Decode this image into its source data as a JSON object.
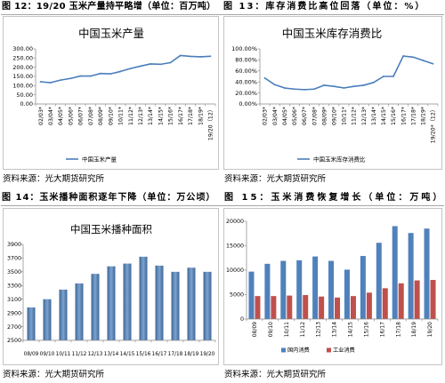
{
  "figures": [
    {
      "caption": "图 12：19/20 玉米产量持平略增（单位：百万吨）",
      "source": "资料来源：光大期货研究所"
    },
    {
      "caption": "图 13：库存消费比高位回落（单位：%）",
      "source": "资料来源：光大期货研究所"
    },
    {
      "caption": "图 14：玉米播种面积逐年下降（单位：万公顷）",
      "source": "资料来源：光大期货研究所"
    },
    {
      "caption": "图 15：玉米消费恢复增长（单位：万吨）",
      "source": "资料来源：光大期货研究所"
    }
  ],
  "chart_data": [
    {
      "type": "line",
      "title": "中国玉米产量",
      "categories": [
        "02/03*",
        "03/04*",
        "04/05*",
        "05/06*",
        "06/07*",
        "07/08*",
        "08/09*",
        "09/10*",
        "10/11*",
        "11/12*",
        "12/13*",
        "13/14*",
        "14/15*",
        "15/16*",
        "16/17*",
        "17/18*",
        "18/19*",
        "19/20（12）"
      ],
      "series": [
        {
          "name": "中国玉米产量",
          "color": "#4a7ebb",
          "values": [
            121,
            116,
            130,
            139,
            152,
            152,
            166,
            164,
            177,
            193,
            206,
            218,
            216,
            225,
            264,
            259,
            257,
            260
          ]
        }
      ],
      "ylim": [
        0,
        300
      ],
      "yticks": [
        0,
        50,
        100,
        150,
        200,
        250,
        300
      ],
      "ytick_labels": [
        "0.00",
        "50.00",
        "100.00",
        "150.00",
        "200.00",
        "250.00",
        "300.00"
      ],
      "grid": false,
      "legend": "bottom"
    },
    {
      "type": "line",
      "title": "中国玉米库存消费比",
      "categories": [
        "02/03*",
        "03/04*",
        "04/05*",
        "05/06*",
        "06/07*",
        "07/08*",
        "08/09*",
        "09/10*",
        "10/11*",
        "11/12*",
        "12/13*",
        "13/14*",
        "14/15*",
        "15/16*",
        "16/17*",
        "17/18*",
        "18/19*",
        "19/20*（12）"
      ],
      "series": [
        {
          "name": "中国玉米库存消费比",
          "color": "#4a7ebb",
          "values": [
            47,
            35,
            29,
            27,
            26,
            27,
            34,
            32,
            29,
            32,
            34,
            39,
            50,
            50,
            87,
            85,
            79,
            73
          ]
        }
      ],
      "ylim": [
        0,
        100
      ],
      "yticks": [
        0,
        20,
        40,
        60,
        80,
        100
      ],
      "ytick_labels": [
        "0.00%",
        "20.00%",
        "40.00%",
        "60.00%",
        "80.00%",
        "100.00%"
      ],
      "grid": false,
      "legend": "bottom"
    },
    {
      "type": "bar",
      "title": "中国玉米播种面积",
      "categories": [
        "08/09",
        "09/10",
        "10/11",
        "11/12",
        "12/13",
        "13/14",
        "14/15",
        "15/16",
        "16/17",
        "17/18",
        "18/19",
        "19/20"
      ],
      "series": [
        {
          "color": "#4a7ebb",
          "values": [
            2980,
            3100,
            3240,
            3330,
            3470,
            3580,
            3620,
            3720,
            3590,
            3500,
            3560,
            3500
          ]
        }
      ],
      "ylim": [
        2500,
        3900
      ],
      "yticks": [
        2500,
        2700,
        2900,
        3100,
        3300,
        3500,
        3700,
        3900
      ],
      "ytick_labels": [
        "2500",
        "2700",
        "2900",
        "3100",
        "3300",
        "3500",
        "3700",
        "3900"
      ],
      "grid": false,
      "legend": "none"
    },
    {
      "type": "bar",
      "title": "",
      "categories": [
        "08/09",
        "09/10",
        "10/11",
        "11/12",
        "12/13",
        "13/14",
        "14/15",
        "15/16",
        "16/17",
        "17/18",
        "18/19",
        "19/20"
      ],
      "series": [
        {
          "name": "国内消费",
          "color": "#4f81bd",
          "values": [
            9700,
            11300,
            11900,
            12000,
            12800,
            11900,
            10100,
            12900,
            15600,
            19000,
            17600,
            18500
          ]
        },
        {
          "name": "工业消费",
          "color": "#c0504d",
          "values": [
            4700,
            4700,
            4800,
            4900,
            4600,
            4400,
            4700,
            5400,
            6300,
            7300,
            7900,
            8000
          ]
        }
      ],
      "ylim": [
        0,
        20000
      ],
      "yticks": [
        0,
        5000,
        10000,
        15000,
        20000
      ],
      "ytick_labels": [
        "0",
        "5000",
        "10000",
        "15000",
        "20000"
      ],
      "grid": false,
      "legend": "bottom"
    }
  ]
}
